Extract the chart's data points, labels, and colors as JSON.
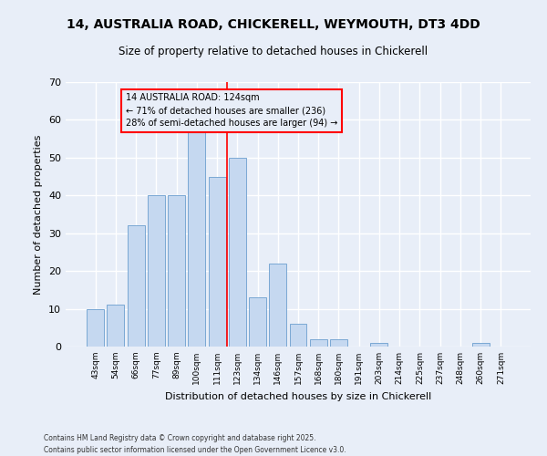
{
  "title": "14, AUSTRALIA ROAD, CHICKERELL, WEYMOUTH, DT3 4DD",
  "subtitle": "Size of property relative to detached houses in Chickerell",
  "xlabel": "Distribution of detached houses by size in Chickerell",
  "ylabel": "Number of detached properties",
  "categories": [
    "43sqm",
    "54sqm",
    "66sqm",
    "77sqm",
    "89sqm",
    "100sqm",
    "111sqm",
    "123sqm",
    "134sqm",
    "146sqm",
    "157sqm",
    "168sqm",
    "180sqm",
    "191sqm",
    "203sqm",
    "214sqm",
    "225sqm",
    "237sqm",
    "248sqm",
    "260sqm",
    "271sqm"
  ],
  "values": [
    10,
    11,
    32,
    40,
    40,
    58,
    45,
    50,
    13,
    22,
    6,
    2,
    2,
    0,
    1,
    0,
    0,
    0,
    0,
    1,
    0
  ],
  "bar_color": "#c5d8f0",
  "bar_edge_color": "#7aa8d4",
  "background_color": "#e8eef8",
  "grid_color": "#ffffff",
  "property_line_x": 6.5,
  "annotation_text": "14 AUSTRALIA ROAD: 124sqm\n← 71% of detached houses are smaller (236)\n28% of semi-detached houses are larger (94) →",
  "ylim": [
    0,
    70
  ],
  "yticks": [
    0,
    10,
    20,
    30,
    40,
    50,
    60,
    70
  ],
  "footer1": "Contains HM Land Registry data © Crown copyright and database right 2025.",
  "footer2": "Contains public sector information licensed under the Open Government Licence v3.0."
}
